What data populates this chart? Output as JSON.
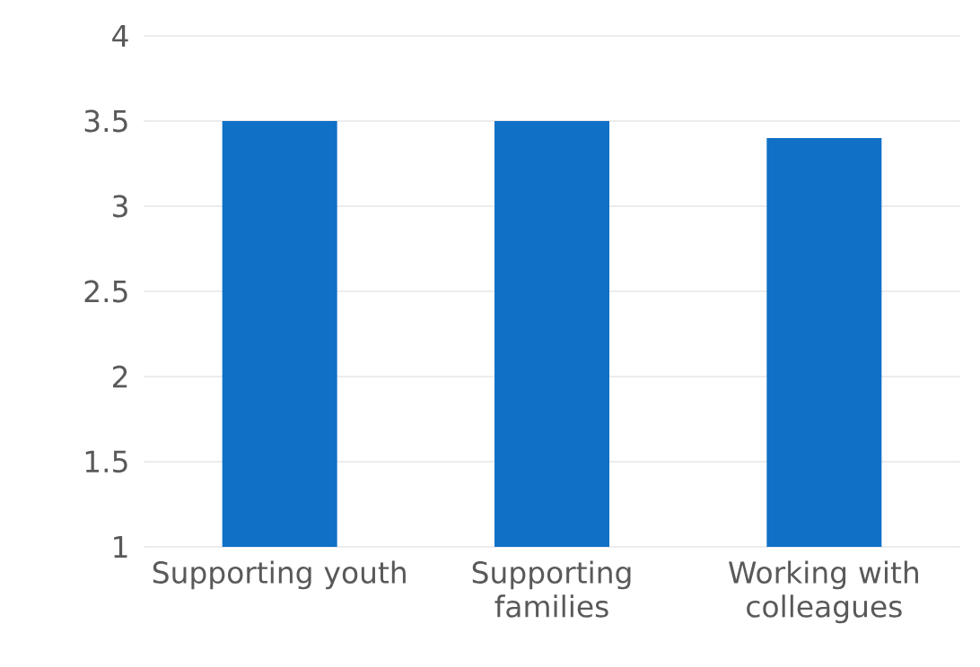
{
  "chart_data": {
    "type": "bar",
    "categories": [
      "Supporting youth",
      "Supporting families",
      "Working with colleagues"
    ],
    "values": [
      3.5,
      3.5,
      3.4
    ],
    "color": "#1070c6",
    "ylim": [
      1,
      4
    ],
    "yticks": [
      1,
      1.5,
      2,
      2.5,
      3,
      3.5,
      4
    ],
    "grid": "y"
  }
}
